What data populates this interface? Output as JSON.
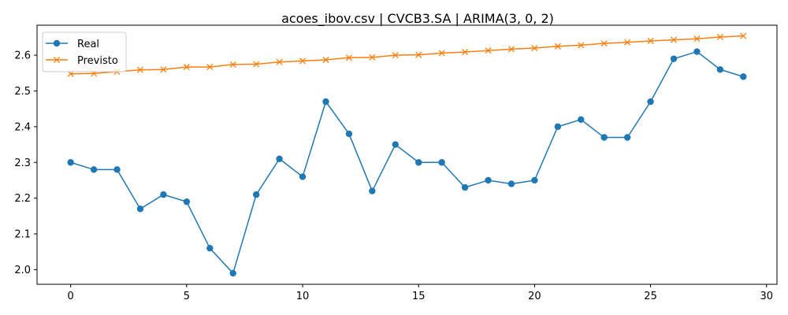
{
  "chart_data": {
    "type": "line",
    "title": "acoes_ibov.csv | CVCB3.SA | ARIMA(3, 0, 2)",
    "xlabel": "",
    "ylabel": "",
    "x": [
      0,
      1,
      2,
      3,
      4,
      5,
      6,
      7,
      8,
      9,
      10,
      11,
      12,
      13,
      14,
      15,
      16,
      17,
      18,
      19,
      20,
      21,
      22,
      23,
      24,
      25,
      26,
      27,
      28,
      29
    ],
    "xlim": [
      -1.45,
      30.45
    ],
    "ylim": [
      1.959,
      2.684
    ],
    "xticks": [
      0,
      5,
      10,
      15,
      20,
      25,
      30
    ],
    "yticks": [
      2.0,
      2.1,
      2.2,
      2.3,
      2.4,
      2.5,
      2.6
    ],
    "xtick_labels": [
      "0",
      "5",
      "10",
      "15",
      "20",
      "25",
      "30"
    ],
    "ytick_labels": [
      "2.0",
      "2.1",
      "2.2",
      "2.3",
      "2.4",
      "2.5",
      "2.6"
    ],
    "grid": false,
    "legend_position": "top-left",
    "series": [
      {
        "name": "Real",
        "color": "#1f77b4",
        "marker": "circle",
        "values": [
          2.3,
          2.28,
          2.28,
          2.17,
          2.21,
          2.19,
          2.06,
          1.99,
          2.21,
          2.31,
          2.26,
          2.47,
          2.38,
          2.22,
          2.35,
          2.3,
          2.3,
          2.23,
          2.25,
          2.24,
          2.25,
          2.4,
          2.42,
          2.37,
          2.37,
          2.47,
          2.59,
          2.61,
          2.56,
          2.54
        ]
      },
      {
        "name": "Previsto",
        "color": "#ff7f0e",
        "marker": "x",
        "values": [
          2.548,
          2.549,
          2.554,
          2.559,
          2.56,
          2.567,
          2.567,
          2.574,
          2.575,
          2.581,
          2.584,
          2.587,
          2.593,
          2.594,
          2.6,
          2.601,
          2.606,
          2.609,
          2.613,
          2.617,
          2.62,
          2.625,
          2.628,
          2.633,
          2.636,
          2.64,
          2.643,
          2.646,
          2.651,
          2.654
        ]
      }
    ]
  }
}
